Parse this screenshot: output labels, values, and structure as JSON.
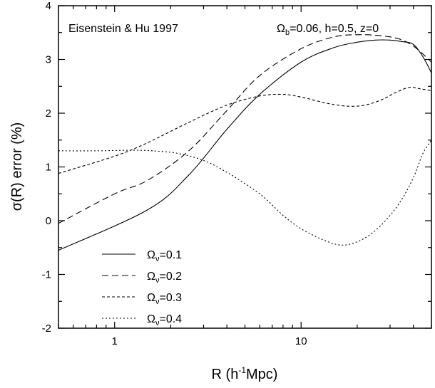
{
  "chart_data": {
    "type": "line",
    "xlabel": "R (h⁻¹Mpc)",
    "ylabel": "σ(R) error (%)",
    "x_scale": "log",
    "xlim": [
      0.5,
      50
    ],
    "ylim": [
      -2,
      4
    ],
    "x_ticks": [
      {
        "value": 1,
        "label": "1"
      },
      {
        "value": 10,
        "label": "10"
      }
    ],
    "y_ticks": [
      {
        "value": -2,
        "label": "-2"
      },
      {
        "value": -1,
        "label": "-1"
      },
      {
        "value": 0,
        "label": "0"
      },
      {
        "value": 1,
        "label": "1"
      },
      {
        "value": 2,
        "label": "2"
      },
      {
        "value": 3,
        "label": "3"
      },
      {
        "value": 4,
        "label": "4"
      }
    ],
    "annotations": {
      "left": "Eisenstein & Hu 1997",
      "right": "Ωb=0.06, h=0.5,  z=0"
    },
    "legend_position": "bottom-left",
    "series": [
      {
        "name": "Ων=0.1",
        "dash": "solid",
        "x": [
          0.5,
          1.5,
          2.5,
          4,
          6,
          10,
          15,
          20,
          25,
          30,
          35,
          40,
          45,
          50
        ],
        "y": [
          -0.55,
          0.2,
          0.85,
          1.7,
          2.35,
          2.95,
          3.22,
          3.32,
          3.36,
          3.36,
          3.33,
          3.28,
          3.05,
          2.75
        ]
      },
      {
        "name": "Ων=0.2",
        "dash": "dashed",
        "x": [
          0.5,
          1,
          1.5,
          2.5,
          4,
          6,
          10,
          15,
          20,
          25,
          30,
          35,
          40,
          45,
          50
        ],
        "y": [
          -0.05,
          0.5,
          0.75,
          1.3,
          2.05,
          2.7,
          3.2,
          3.42,
          3.46,
          3.45,
          3.42,
          3.36,
          3.25,
          3.1,
          2.95
        ]
      },
      {
        "name": "Ων=0.3",
        "dash": "short-dash",
        "x": [
          0.5,
          1,
          1.5,
          2.5,
          4,
          6,
          8,
          10,
          14,
          18,
          22,
          27,
          32,
          38,
          44,
          50
        ],
        "y": [
          0.88,
          1.2,
          1.45,
          1.83,
          2.15,
          2.32,
          2.35,
          2.3,
          2.18,
          2.13,
          2.15,
          2.25,
          2.38,
          2.48,
          2.45,
          2.42
        ]
      },
      {
        "name": "Ων=0.4",
        "dash": "dotted",
        "x": [
          0.5,
          0.8,
          1.2,
          1.6,
          2.2,
          3,
          4,
          6,
          8,
          10,
          13,
          16,
          19,
          23,
          28,
          34,
          40,
          45,
          50
        ],
        "y": [
          1.3,
          1.3,
          1.31,
          1.3,
          1.25,
          1.12,
          0.9,
          0.5,
          0.1,
          -0.15,
          -0.35,
          -0.45,
          -0.42,
          -0.28,
          -0.02,
          0.35,
          0.8,
          1.25,
          1.5
        ]
      }
    ]
  }
}
